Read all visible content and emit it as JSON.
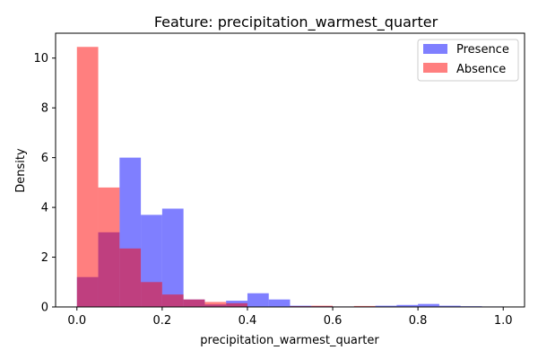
{
  "chart_data": {
    "type": "bar",
    "title": "Feature: precipitation_warmest_quarter",
    "xlabel": "precipitation_warmest_quarter",
    "ylabel": "Density",
    "xlim": [
      -0.05,
      1.05
    ],
    "ylim": [
      0,
      11
    ],
    "xticks": [
      "0.0",
      "0.2",
      "0.4",
      "0.6",
      "0.8",
      "1.0"
    ],
    "yticks": [
      "0",
      "2",
      "4",
      "6",
      "8",
      "10"
    ],
    "grid": false,
    "legend_position": "top-right",
    "bin_edges": [
      0.0,
      0.05,
      0.1,
      0.15,
      0.2,
      0.25,
      0.3,
      0.35,
      0.4,
      0.45,
      0.5,
      0.55,
      0.6,
      0.65,
      0.7,
      0.75,
      0.8,
      0.85,
      0.9,
      0.95,
      1.0
    ],
    "series": [
      {
        "name": "Presence",
        "color": "#0000ff",
        "alpha": 0.5,
        "values": [
          1.2,
          3.0,
          6.0,
          3.7,
          3.95,
          0.3,
          0.1,
          0.25,
          0.55,
          0.3,
          0.05,
          0.03,
          0.02,
          0.02,
          0.05,
          0.08,
          0.12,
          0.05,
          0.03,
          0.02
        ]
      },
      {
        "name": "Absence",
        "color": "#ff0000",
        "alpha": 0.5,
        "values": [
          10.45,
          4.8,
          2.35,
          1.0,
          0.5,
          0.3,
          0.2,
          0.15,
          0.0,
          0.0,
          0.03,
          0.05,
          0.02,
          0.04,
          0.0,
          0.0,
          0.0,
          0.0,
          0.0,
          0.0
        ]
      }
    ]
  }
}
